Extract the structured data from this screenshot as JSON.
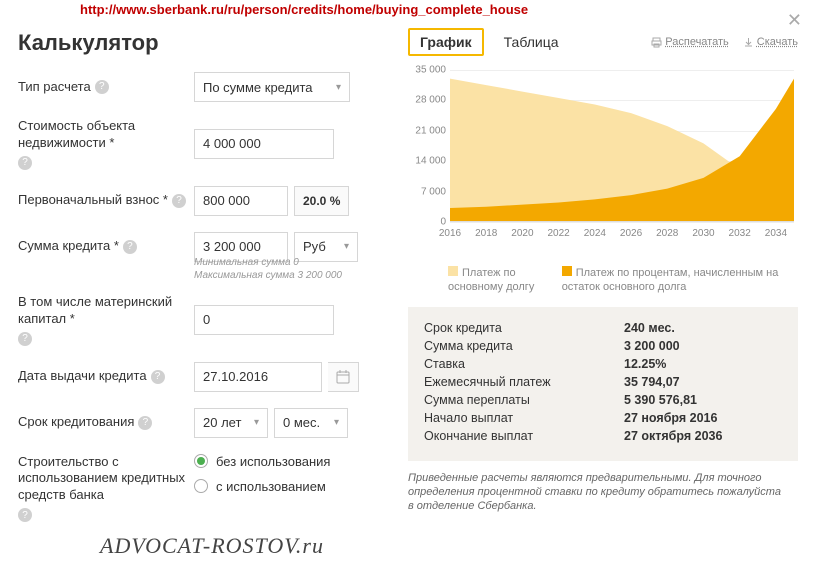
{
  "url": "http://www.sberbank.ru/ru/person/credits/home/buying_complete_house",
  "watermark": "ADVOCAT-ROSTOV.ru",
  "calculator": {
    "title": "Калькулятор",
    "fields": {
      "calc_type": {
        "label": "Тип расчета",
        "value": "По сумме кредита"
      },
      "property_cost": {
        "label": "Стоимость объекта недвижимости *",
        "value": "4 000 000"
      },
      "down_payment": {
        "label": "Первоначальный взнос *",
        "value": "800 000",
        "percent": "20.0 %"
      },
      "loan_amount": {
        "label": "Сумма кредита *",
        "value": "3 200 000",
        "currency": "Руб",
        "min_hint": "Минимальная сумма 0",
        "max_hint": "Максимальная сумма 3 200 000"
      },
      "mat_capital": {
        "label": "В том числе материнский капитал *",
        "value": "0"
      },
      "issue_date": {
        "label": "Дата выдачи кредита",
        "value": "27.10.2016"
      },
      "term": {
        "label": "Срок кредитования",
        "years": "20 лет",
        "months": "0 мес."
      },
      "construction": {
        "label": "Строительство с использованием кредитных средств банка",
        "opt1": "без использования",
        "opt2": "с использованием",
        "selected": 0
      }
    }
  },
  "right": {
    "tabs": {
      "chart": "График",
      "table": "Таблица"
    },
    "actions": {
      "print": "Распечатать",
      "download": "Скачать"
    },
    "chart": {
      "type": "area",
      "background_color": "#ffffff",
      "grid_color": "#eeeeee",
      "axis_color": "#dddddd",
      "label_color": "#888888",
      "label_fontsize": 10,
      "ylim": [
        0,
        35000
      ],
      "y_ticks": [
        0,
        7000,
        14000,
        21000,
        28000,
        35000
      ],
      "y_tick_labels": [
        "0",
        "7 000",
        "14 000",
        "21 000",
        "28 000",
        "35 000"
      ],
      "x_ticks": [
        2016,
        2018,
        2020,
        2022,
        2024,
        2026,
        2028,
        2030,
        2032,
        2034
      ],
      "series": [
        {
          "name": "Платеж по основному долгу",
          "color": "#fbe2a5",
          "points": [
            [
              2016,
              33000
            ],
            [
              2018,
              31500
            ],
            [
              2020,
              30000
            ],
            [
              2022,
              28500
            ],
            [
              2024,
              27000
            ],
            [
              2026,
              25000
            ],
            [
              2028,
              22000
            ],
            [
              2030,
              18000
            ],
            [
              2032,
              12000
            ],
            [
              2034,
              3000
            ],
            [
              2035,
              0
            ]
          ]
        },
        {
          "name": "Платеж по процентам, начисленным на остаток основного долга",
          "color": "#f3a800",
          "points": [
            [
              2016,
              3000
            ],
            [
              2018,
              3300
            ],
            [
              2020,
              3800
            ],
            [
              2022,
              4300
            ],
            [
              2024,
              5000
            ],
            [
              2026,
              6000
            ],
            [
              2028,
              7500
            ],
            [
              2030,
              10000
            ],
            [
              2032,
              15000
            ],
            [
              2034,
              26000
            ],
            [
              2035,
              33000
            ]
          ]
        }
      ]
    },
    "legend": {
      "item1": "Платеж по основному долгу",
      "item2": "Платеж по процентам, начисленным на остаток основного долга"
    },
    "summary": {
      "term": {
        "k": "Срок кредита",
        "v": "240 мес."
      },
      "amount": {
        "k": "Сумма кредита",
        "v": "3 200 000"
      },
      "rate": {
        "k": "Ставка",
        "v": "12.25%"
      },
      "monthly": {
        "k": "Ежемесячный платеж",
        "v": "35 794,07"
      },
      "overpay": {
        "k": "Сумма переплаты",
        "v": "5 390 576,81"
      },
      "start": {
        "k": "Начало выплат",
        "v": "27 ноября 2016"
      },
      "end": {
        "k": "Окончание выплат",
        "v": "27 октября 2036"
      }
    },
    "fine_print": "Приведенные расчеты являются предварительными. Для точного определения процентной ставки по кредиту обратитесь пожалуйста в отделение Сбербанка."
  }
}
